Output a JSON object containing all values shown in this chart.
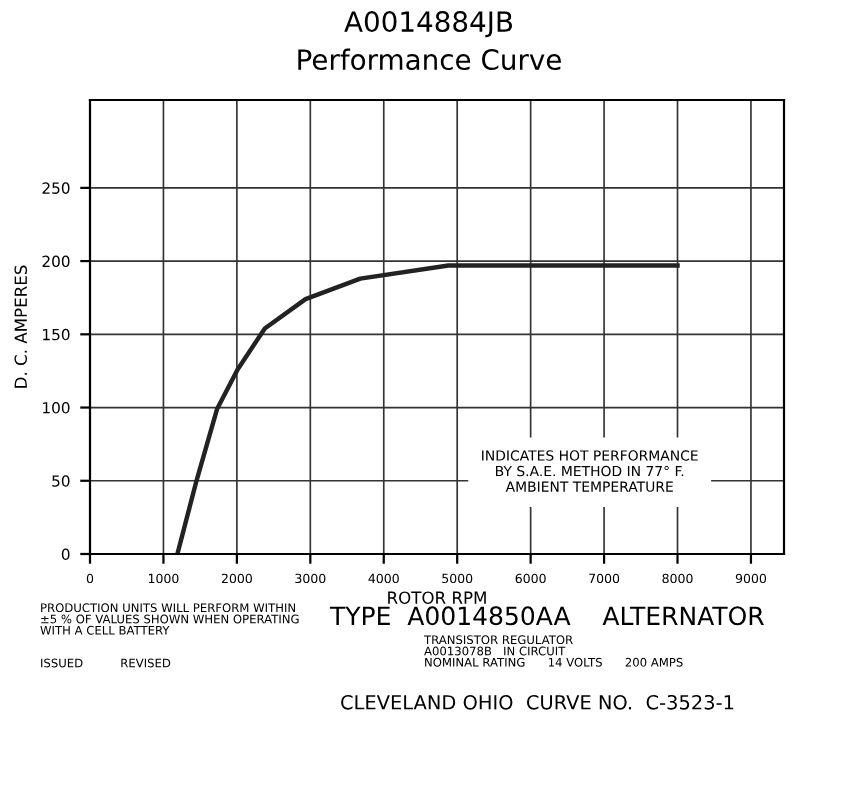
{
  "chart_data": {
    "type": "line",
    "title": "A0014884JB",
    "subtitle": "Performance Curve",
    "xlabel": "ROTOR RPM",
    "ylabel": "D. C. AMPERES",
    "series": [
      {
        "color": "#222222",
        "x": [
          1190,
          1450,
          1730,
          2010,
          2380,
          2935,
          3680,
          4880,
          6000,
          7000,
          8000
        ],
        "values": [
          0,
          50,
          99,
          126,
          154,
          174,
          188,
          197,
          197,
          197,
          197
        ]
      }
    ],
    "xlim": [
      0,
      9450
    ],
    "ylim": [
      0,
      310
    ],
    "xticks": [
      0,
      1000,
      2000,
      3000,
      4000,
      5000,
      6000,
      7000,
      8000,
      9000
    ],
    "yticks": [
      0,
      50,
      100,
      150,
      200,
      250
    ],
    "grid": true,
    "marker": "none",
    "line_style": "solid",
    "annotations": [
      "INDICATES HOT PERFORMANCE\nBY S.A.E. METHOD IN 77° F.\nAMBIENT TEMPERATURE",
      "PRODUCTION UNITS WILL PERFORM WITHIN\n±5 % OF VALUES SHOWN WHEN OPERATING\nWITH A CELL BATTERY",
      "TYPE  A0014850AA    ALTERNATOR",
      "TRANSISTOR REGULATOR\nA0013078B   IN CIRCUIT\nNOMINAL RATING      14 VOLTS      200 AMPS",
      "ISSUED          REVISED",
      "CLEVELAND OHIO  CURVE NO.  C-3523-1"
    ]
  }
}
